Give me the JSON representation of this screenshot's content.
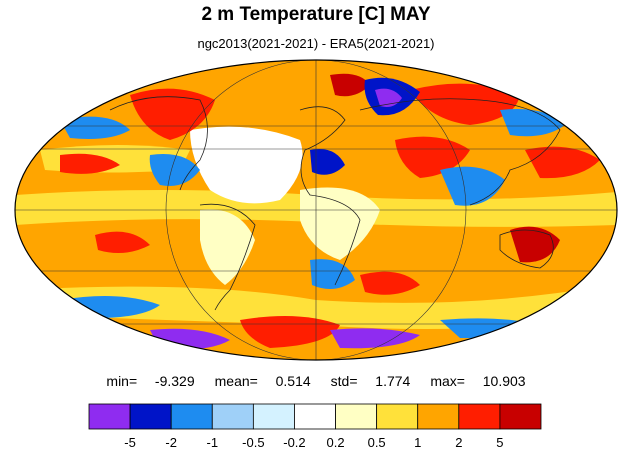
{
  "header": {
    "title": "2 m Temperature [C] MAY",
    "subtitle": "ngc2013(2021-2021) - ERA5(2021-2021)"
  },
  "stats": {
    "min_label": "min=",
    "min": "-9.329",
    "mean_label": "mean=",
    "mean": "0.514",
    "std_label": "std=",
    "std": "1.774",
    "max_label": "max=",
    "max": "10.903"
  },
  "legend": {
    "colors": [
      "#8f2cf0",
      "#0014c8",
      "#1e8cf0",
      "#9fd0f8",
      "#d4f2ff",
      "#ffffff",
      "#ffffc4",
      "#ffe13a",
      "#ffa500",
      "#ff1e00",
      "#c80000"
    ],
    "ticks": [
      "-5",
      "-2",
      "-1",
      "-0.5",
      "-0.2",
      "0.2",
      "0.5",
      "1",
      "2",
      "5"
    ]
  },
  "map": {
    "projection": "mollweide",
    "field": "temperature difference",
    "background_color": "#ffa500"
  }
}
